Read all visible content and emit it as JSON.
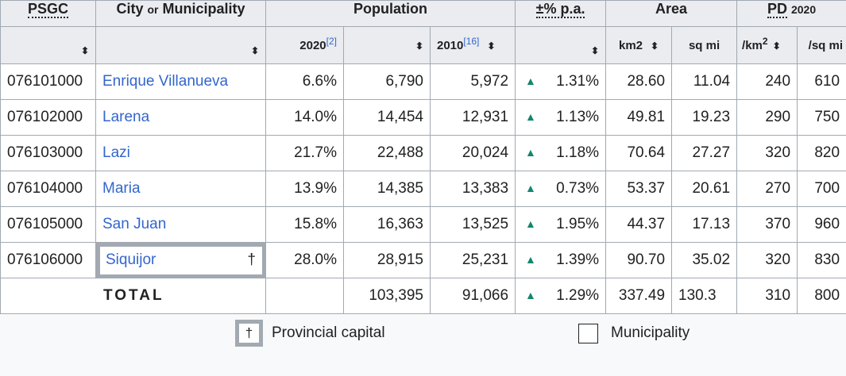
{
  "header": {
    "psgc": "PSGC",
    "city_a": "City",
    "city_or": "or",
    "city_b": "Municipality",
    "population": "Population",
    "pop2020": "2020",
    "pop2020_ref": "[2]",
    "pop2010": "2010",
    "pop2010_ref": "[16]",
    "growth": "±% p.a.",
    "area": "Area",
    "km2": "km2",
    "sqmi": "sq mi",
    "pd": "PD",
    "pd_year": "2020",
    "per_km_a": "/km",
    "per_km_sup": "2",
    "per_sqmi": "/sq mi",
    "sort_icon": "⬍",
    "growth_icon": "▲"
  },
  "rows": [
    {
      "code": "076101000",
      "name": "Enrique Villanueva",
      "share": "6.6%",
      "pop2020": "6,790",
      "pop2010": "5,972",
      "growth": "1.31%",
      "km2": "28.60",
      "sqmi": "11.04",
      "pdkm": "240",
      "pdmi": "610"
    },
    {
      "code": "076102000",
      "name": "Larena",
      "share": "14.0%",
      "pop2020": "14,454",
      "pop2010": "12,931",
      "growth": "1.13%",
      "km2": "49.81",
      "sqmi": "19.23",
      "pdkm": "290",
      "pdmi": "750"
    },
    {
      "code": "076103000",
      "name": "Lazi",
      "share": "21.7%",
      "pop2020": "22,488",
      "pop2010": "20,024",
      "growth": "1.18%",
      "km2": "70.64",
      "sqmi": "27.27",
      "pdkm": "320",
      "pdmi": "820"
    },
    {
      "code": "076104000",
      "name": "Maria",
      "share": "13.9%",
      "pop2020": "14,385",
      "pop2010": "13,383",
      "growth": "0.73%",
      "km2": "53.37",
      "sqmi": "20.61",
      "pdkm": "270",
      "pdmi": "700"
    },
    {
      "code": "076105000",
      "name": "San Juan",
      "share": "15.8%",
      "pop2020": "16,363",
      "pop2010": "13,525",
      "growth": "1.95%",
      "km2": "44.37",
      "sqmi": "17.13",
      "pdkm": "370",
      "pdmi": "960"
    },
    {
      "code": "076106000",
      "name": "Siquijor",
      "dagger": "†",
      "share": "28.0%",
      "pop2020": "28,915",
      "pop2010": "25,231",
      "growth": "1.39%",
      "km2": "90.70",
      "sqmi": "35.02",
      "pdkm": "320",
      "pdmi": "830"
    }
  ],
  "total": {
    "label": "TOTAL",
    "pop2020": "103,395",
    "pop2010": "91,066",
    "growth": "1.29%",
    "km2": "337.49",
    "sqmi": "130.3",
    "pdkm": "310",
    "pdmi": "800"
  },
  "legend": {
    "capital_symbol": "†",
    "capital_label": "Provincial capital",
    "municipality_label": "Municipality"
  }
}
